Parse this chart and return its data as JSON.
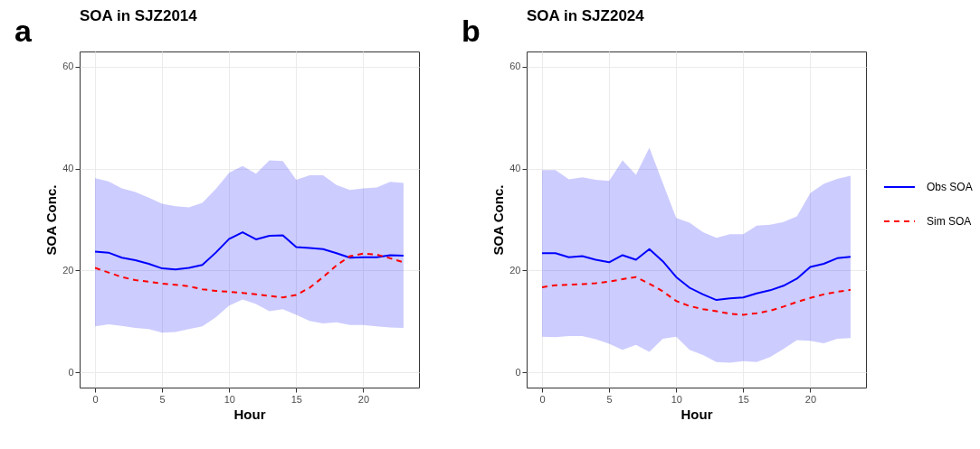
{
  "chart_data": [
    {
      "type": "line",
      "title": "SOA in SJZ2014",
      "xlabel": "Hour",
      "ylabel": "SOA Conc.",
      "annotations": [
        "a"
      ],
      "x": [
        0,
        1,
        2,
        3,
        4,
        5,
        6,
        7,
        8,
        9,
        10,
        11,
        12,
        13,
        14,
        15,
        16,
        17,
        18,
        19,
        20,
        21,
        22,
        23
      ],
      "xlim": [
        -1.15,
        24.15
      ],
      "xticks": [
        0,
        5,
        10,
        15,
        20
      ],
      "ylim": [
        -3,
        63
      ],
      "yticks": [
        0,
        20,
        40,
        60
      ],
      "grid": true,
      "legend": "right",
      "series": [
        {
          "name": "Obs SOA",
          "color": "#0000ff",
          "line_style": "solid",
          "values": [
            23.7,
            23.5,
            22.5,
            22.0,
            21.3,
            20.4,
            20.2,
            20.5,
            21.1,
            23.5,
            26.2,
            27.5,
            26.1,
            26.8,
            26.9,
            24.6,
            24.4,
            24.2,
            23.4,
            22.5,
            22.6,
            22.6,
            23.0,
            22.9
          ],
          "lower": [
            9.0,
            9.4,
            9.1,
            8.7,
            8.5,
            7.8,
            7.9,
            8.5,
            9.0,
            10.8,
            13.1,
            14.3,
            13.4,
            12.0,
            12.4,
            11.3,
            10.1,
            9.6,
            9.8,
            9.3,
            9.3,
            9.0,
            8.8,
            8.7
          ],
          "upper": [
            38.1,
            37.5,
            36.1,
            35.4,
            34.3,
            33.1,
            32.6,
            32.4,
            33.3,
            36.0,
            39.2,
            40.5,
            39.0,
            41.6,
            41.5,
            37.8,
            38.7,
            38.7,
            36.8,
            35.8,
            36.1,
            36.3,
            37.4,
            37.2
          ]
        },
        {
          "name": "Sim SOA",
          "color": "#ff0000",
          "line_style": "dashed",
          "values": [
            20.5,
            19.6,
            18.7,
            18.1,
            17.8,
            17.4,
            17.2,
            16.9,
            16.3,
            16.0,
            15.8,
            15.6,
            15.3,
            15.0,
            14.7,
            15.2,
            16.6,
            18.7,
            21.0,
            22.8,
            23.3,
            23.1,
            22.4,
            21.6
          ]
        }
      ]
    },
    {
      "type": "line",
      "title": "SOA in SJZ2024",
      "xlabel": "Hour",
      "ylabel": "SOA Conc.",
      "annotations": [
        "b"
      ],
      "x": [
        0,
        1,
        2,
        3,
        4,
        5,
        6,
        7,
        8,
        9,
        10,
        11,
        12,
        13,
        14,
        15,
        16,
        17,
        18,
        19,
        20,
        21,
        22,
        23
      ],
      "xlim": [
        -1.15,
        24.15
      ],
      "xticks": [
        0,
        5,
        10,
        15,
        20
      ],
      "ylim": [
        -3,
        63
      ],
      "yticks": [
        0,
        20,
        40,
        60
      ],
      "grid": true,
      "legend": "right",
      "series": [
        {
          "name": "Obs SOA",
          "color": "#0000ff",
          "line_style": "solid",
          "values": [
            23.4,
            23.4,
            22.6,
            22.8,
            22.1,
            21.6,
            23.0,
            22.1,
            24.2,
            21.8,
            18.7,
            16.6,
            15.3,
            14.2,
            14.5,
            14.7,
            15.5,
            16.1,
            17.0,
            18.4,
            20.7,
            21.3,
            22.4,
            22.7
          ],
          "lower": [
            7.0,
            6.9,
            7.1,
            7.1,
            6.5,
            5.6,
            4.4,
            5.4,
            4.0,
            6.6,
            7.0,
            4.4,
            3.4,
            2.0,
            1.9,
            2.2,
            2.0,
            3.0,
            4.6,
            6.3,
            6.2,
            5.7,
            6.6,
            6.7
          ],
          "upper": [
            39.7,
            39.7,
            37.9,
            38.3,
            37.8,
            37.6,
            41.6,
            38.8,
            44.1,
            37.2,
            30.3,
            29.4,
            27.5,
            26.4,
            27.1,
            27.1,
            28.8,
            29.0,
            29.5,
            30.6,
            35.2,
            37.0,
            38.0,
            38.6
          ]
        },
        {
          "name": "Sim SOA",
          "color": "#ff0000",
          "line_style": "dashed",
          "values": [
            16.7,
            17.1,
            17.2,
            17.3,
            17.5,
            17.8,
            18.3,
            18.7,
            17.4,
            15.9,
            14.0,
            13.0,
            12.4,
            12.0,
            11.5,
            11.3,
            11.6,
            12.1,
            12.9,
            13.8,
            14.6,
            15.3,
            15.8,
            16.2
          ]
        }
      ]
    }
  ]
}
